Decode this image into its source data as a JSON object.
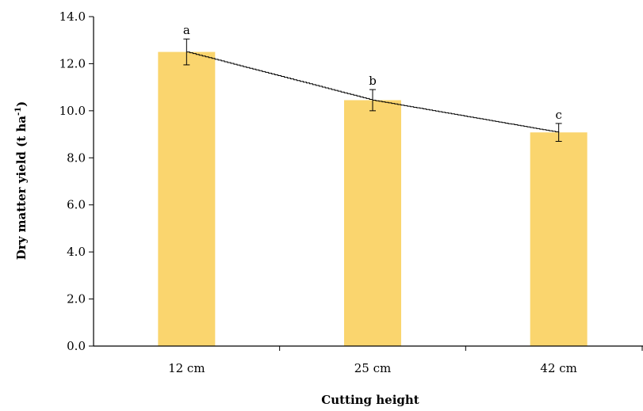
{
  "chart_data": {
    "type": "bar",
    "categories": [
      "12 cm",
      "25 cm",
      "42 cm"
    ],
    "values": [
      12.5,
      10.45,
      9.08
    ],
    "errors": [
      0.55,
      0.45,
      0.38
    ],
    "significance_letters": [
      "a",
      "b",
      "c"
    ],
    "trendline": {
      "type": "line",
      "values": [
        12.5,
        10.45,
        9.08
      ]
    },
    "xlabel": "Cutting height",
    "ylabel": {
      "main": "Dry matter yield (t ha",
      "superscript": "-1",
      "close": ")"
    },
    "ylim": [
      0,
      14
    ],
    "yticks": [
      "0.0",
      "2.0",
      "4.0",
      "6.0",
      "8.0",
      "10.0",
      "12.0",
      "14.0"
    ],
    "grid": false,
    "legend": "none",
    "colors": {
      "bar": "#fad56e",
      "axis": "#000000",
      "line": "#000000"
    }
  }
}
